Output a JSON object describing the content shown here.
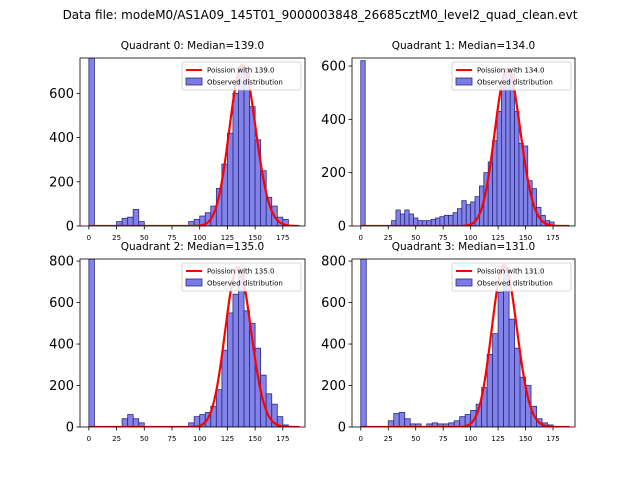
{
  "figure_title": "Data file: modeM0/AS1A09_145T01_9000003848_26685cztM0_level2_quad_clean.evt",
  "colors": {
    "bar_fill": "#7b7be8",
    "bar_edge": "#2a2a80",
    "curve": "#ff0000"
  },
  "chart_data": [
    {
      "type": "bar",
      "title": "Quadrant 0: Median=139.0",
      "bin_width": 5,
      "bin_starts": [
        0,
        25,
        30,
        35,
        40,
        45,
        90,
        95,
        100,
        105,
        110,
        115,
        120,
        125,
        130,
        135,
        140,
        145,
        150,
        155,
        160,
        165,
        170,
        175
      ],
      "values": [
        760,
        20,
        35,
        40,
        75,
        20,
        20,
        30,
        45,
        60,
        90,
        170,
        280,
        420,
        600,
        720,
        690,
        540,
        390,
        250,
        130,
        90,
        40,
        30
      ],
      "curve": {
        "label": "Poission with 139.0",
        "mean": 139.0,
        "peak": 730
      },
      "legend": [
        "Poission with 139.0",
        "Observed distribution"
      ],
      "xlim": [
        -8,
        195
      ],
      "ylim": [
        0,
        760
      ],
      "xticks": [
        0,
        25,
        50,
        75,
        100,
        125,
        150,
        175
      ],
      "yticks": [
        0,
        200,
        400,
        600
      ]
    },
    {
      "type": "bar",
      "title": "Quadrant 1: Median=134.0",
      "bin_width": 4,
      "bin_starts": [
        0,
        28,
        32,
        36,
        40,
        44,
        48,
        52,
        56,
        60,
        64,
        68,
        72,
        76,
        80,
        84,
        88,
        92,
        96,
        100,
        104,
        108,
        112,
        116,
        120,
        124,
        128,
        132,
        136,
        140,
        144,
        148,
        152,
        156,
        160,
        164,
        168,
        172
      ],
      "values": [
        620,
        20,
        60,
        45,
        60,
        45,
        30,
        20,
        20,
        20,
        25,
        30,
        35,
        40,
        40,
        50,
        65,
        95,
        80,
        90,
        110,
        150,
        200,
        240,
        320,
        430,
        520,
        580,
        570,
        430,
        310,
        300,
        170,
        140,
        70,
        40,
        20,
        15
      ],
      "curve": {
        "label": "Poission with 134.0",
        "mean": 134.0,
        "peak": 590
      },
      "legend": [
        "Poission with 134.0",
        "Observed distribution"
      ],
      "xlim": [
        -8,
        195
      ],
      "ylim": [
        0,
        630
      ],
      "xticks": [
        0,
        25,
        50,
        75,
        100,
        125,
        150,
        175
      ],
      "yticks": [
        0,
        200,
        400,
        600
      ]
    },
    {
      "type": "bar",
      "title": "Quadrant 2: Median=135.0",
      "bin_width": 5,
      "bin_starts": [
        0,
        30,
        35,
        40,
        45,
        90,
        95,
        100,
        105,
        110,
        115,
        120,
        125,
        130,
        135,
        140,
        145,
        150,
        155,
        160,
        165,
        170,
        175
      ],
      "values": [
        810,
        40,
        60,
        40,
        20,
        20,
        50,
        60,
        70,
        100,
        180,
        370,
        550,
        640,
        760,
        560,
        500,
        380,
        250,
        160,
        110,
        50,
        10
      ],
      "curve": {
        "label": "Poission with 135.0",
        "mean": 135.0,
        "peak": 770
      },
      "legend": [
        "Poission with 135.0",
        "Observed distribution"
      ],
      "xlim": [
        -8,
        195
      ],
      "ylim": [
        0,
        810
      ],
      "xticks": [
        0,
        25,
        50,
        75,
        100,
        125,
        150,
        175
      ],
      "yticks": [
        0,
        200,
        400,
        600,
        800
      ]
    },
    {
      "type": "bar",
      "title": "Quadrant 3: Median=131.0",
      "bin_width": 5,
      "bin_starts": [
        0,
        25,
        30,
        35,
        40,
        45,
        50,
        60,
        65,
        70,
        75,
        80,
        85,
        90,
        95,
        100,
        105,
        110,
        115,
        120,
        125,
        130,
        135,
        140,
        145,
        150,
        155,
        160,
        165,
        170
      ],
      "values": [
        810,
        30,
        65,
        70,
        40,
        15,
        15,
        15,
        20,
        15,
        15,
        20,
        30,
        50,
        60,
        80,
        110,
        190,
        350,
        450,
        650,
        770,
        520,
        380,
        240,
        200,
        100,
        40,
        20,
        10
      ],
      "curve": {
        "label": "Poission with 131.0",
        "mean": 131.0,
        "peak": 780
      },
      "legend": [
        "Poission with 131.0",
        "Observed distribution"
      ],
      "xlim": [
        -8,
        195
      ],
      "ylim": [
        0,
        810
      ],
      "xticks": [
        0,
        25,
        50,
        75,
        100,
        125,
        150,
        175
      ],
      "yticks": [
        0,
        200,
        400,
        600,
        800
      ]
    }
  ]
}
